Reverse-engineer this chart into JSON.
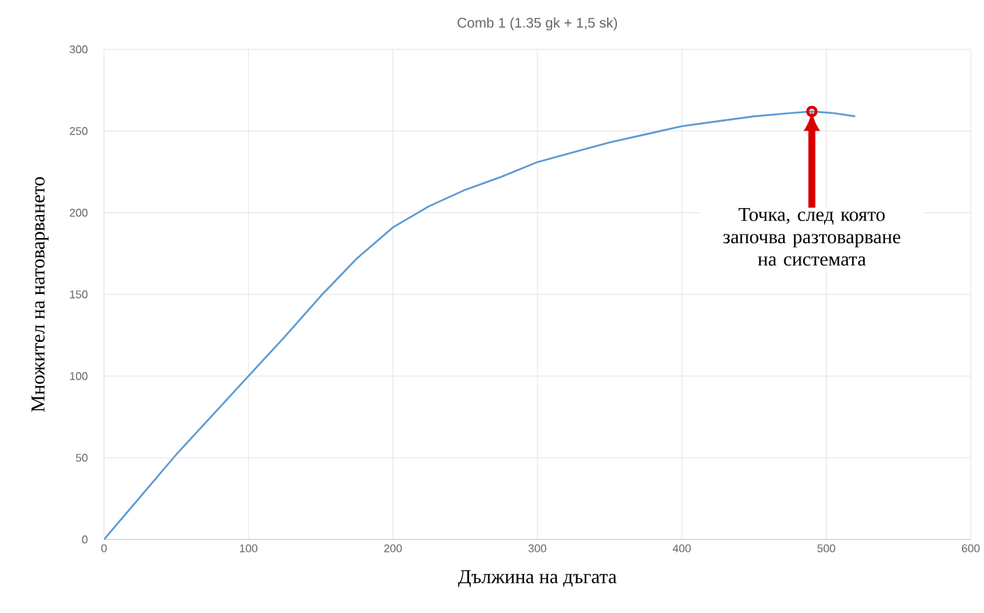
{
  "chart_data": {
    "type": "line",
    "title": "Comb 1 (1.35 gk + 1,5 sk)",
    "xlabel": "Дължина на дъгата",
    "ylabel": "Множител на натоварването",
    "x": [
      0,
      25,
      50,
      75,
      100,
      125,
      150,
      175,
      200,
      225,
      250,
      275,
      300,
      325,
      350,
      375,
      400,
      425,
      450,
      475,
      490,
      505,
      520
    ],
    "series": [
      {
        "color": "#5b9bd5",
        "values": [
          0,
          26,
          52,
          76,
          100,
          124,
          149,
          172,
          191,
          204,
          214,
          222,
          231,
          237,
          243,
          248,
          253,
          256,
          259,
          261,
          262,
          261,
          259
        ]
      }
    ],
    "xlim": [
      0,
      600
    ],
    "xticks": [
      0,
      100,
      200,
      300,
      400,
      500,
      600
    ],
    "ylim": [
      0,
      300
    ],
    "yticks": [
      0,
      50,
      100,
      150,
      200,
      250,
      300
    ],
    "grid": true,
    "marker": "none",
    "line_style": "solid",
    "annotations": [
      "Точка, след която започва разтоварване на системата"
    ]
  }
}
